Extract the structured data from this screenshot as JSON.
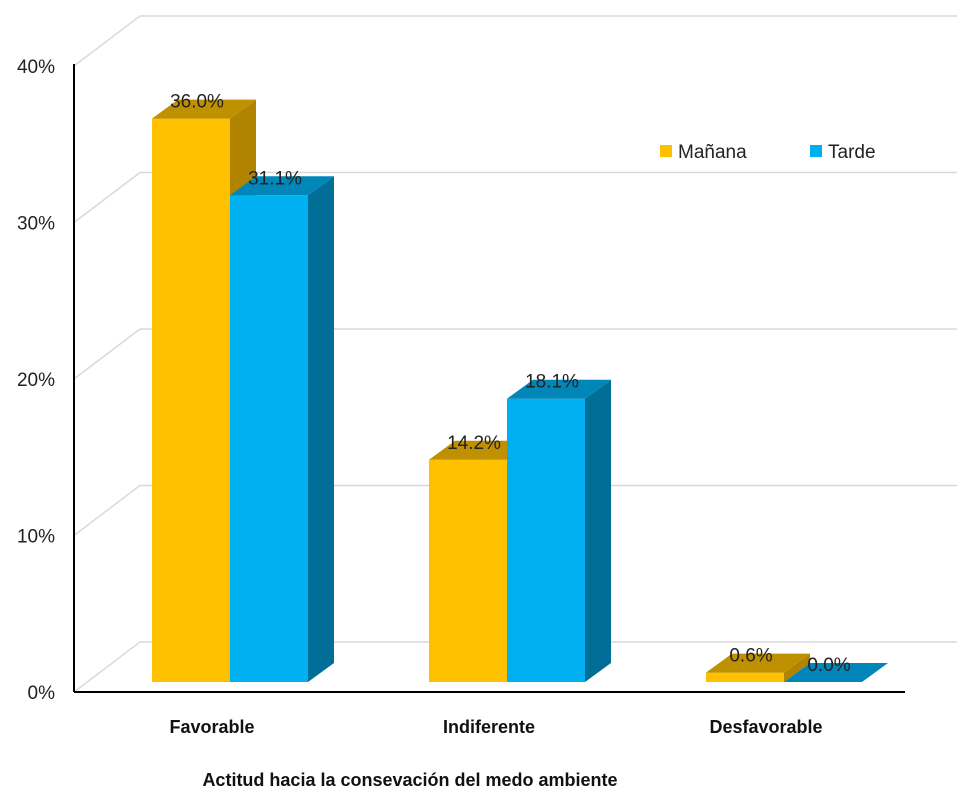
{
  "chart_data": {
    "type": "bar",
    "three_d": true,
    "categories": [
      "Favorable",
      "Indiferente",
      "Desfavorable"
    ],
    "series": [
      {
        "name": "Mañana",
        "values": [
          36.0,
          14.2,
          0.6
        ],
        "color": "#FFC000",
        "top_color": "#BF9000",
        "side_color": "#B08400"
      },
      {
        "name": "Tarde",
        "values": [
          31.1,
          18.1,
          0.0
        ],
        "color": "#00B0F0",
        "top_color": "#0086B8",
        "side_color": "#006E96"
      }
    ],
    "data_labels": [
      [
        "36.0%",
        "14.2%",
        "0.6%"
      ],
      [
        "31.1%",
        "18.1%",
        "0.0%"
      ]
    ],
    "y_ticks": [
      "0%",
      "10%",
      "20%",
      "30%",
      "40%"
    ],
    "ylim": [
      0,
      40
    ],
    "xlabel": "Actitud hacia la consevación del medo ambiente",
    "ylabel": "",
    "title": "",
    "legend_position": "top-right",
    "grid": true
  }
}
